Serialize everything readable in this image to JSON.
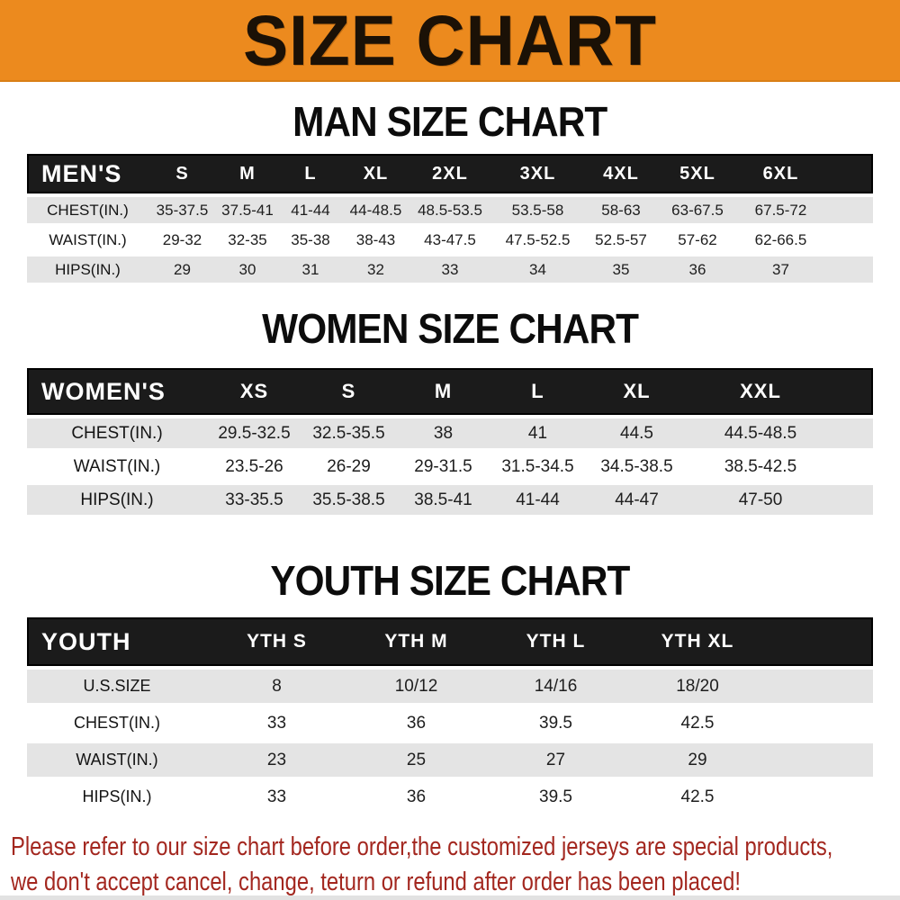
{
  "banner": {
    "title": "SIZE CHART",
    "bg_color": "#ec8a1e",
    "text_color": "#1b1106"
  },
  "colors": {
    "header_bar": "#1b1b1b",
    "row_stripe": "#e4e4e4",
    "footer_text": "#a3271f"
  },
  "sections": [
    {
      "heading": "MAN SIZE CHART",
      "table": {
        "corner_label": "MEN'S",
        "columns": [
          "S",
          "M",
          "L",
          "XL",
          "2XL",
          "3XL",
          "4XL",
          "5XL",
          "6XL"
        ],
        "rows": [
          {
            "label": "CHEST(IN.)",
            "values": [
              "35-37.5",
              "37.5-41",
              "41-44",
              "44-48.5",
              "48.5-53.5",
              "53.5-58",
              "58-63",
              "63-67.5",
              "67.5-72"
            ]
          },
          {
            "label": "WAIST(IN.)",
            "values": [
              "29-32",
              "32-35",
              "35-38",
              "38-43",
              "43-47.5",
              "47.5-52.5",
              "52.5-57",
              "57-62",
              "62-66.5"
            ]
          },
          {
            "label": "HIPS(IN.)",
            "values": [
              "29",
              "30",
              "31",
              "32",
              "33",
              "34",
              "35",
              "36",
              "37"
            ]
          }
        ]
      }
    },
    {
      "heading": "WOMEN SIZE CHART",
      "table": {
        "corner_label": "WOMEN'S",
        "columns": [
          "XS",
          "S",
          "M",
          "L",
          "XL",
          "XXL"
        ],
        "rows": [
          {
            "label": "CHEST(IN.)",
            "values": [
              "29.5-32.5",
              "32.5-35.5",
              "38",
              "41",
              "44.5",
              "44.5-48.5"
            ]
          },
          {
            "label": "WAIST(IN.)",
            "values": [
              "23.5-26",
              "26-29",
              "29-31.5",
              "31.5-34.5",
              "34.5-38.5",
              "38.5-42.5"
            ]
          },
          {
            "label": "HIPS(IN.)",
            "values": [
              "33-35.5",
              "35.5-38.5",
              "38.5-41",
              "41-44",
              "44-47",
              "47-50"
            ]
          }
        ]
      }
    },
    {
      "heading": "YOUTH SIZE CHART",
      "table": {
        "corner_label": "YOUTH",
        "columns": [
          "YTH S",
          "YTH M",
          "YTH L",
          "YTH XL"
        ],
        "rows": [
          {
            "label": "U.S.SIZE",
            "values": [
              "8",
              "10/12",
              "14/16",
              "18/20"
            ]
          },
          {
            "label": "CHEST(IN.)",
            "values": [
              "33",
              "36",
              "39.5",
              "42.5"
            ]
          },
          {
            "label": "WAIST(IN.)",
            "values": [
              "23",
              "25",
              "27",
              "29"
            ]
          },
          {
            "label": "HIPS(IN.)",
            "values": [
              "33",
              "36",
              "39.5",
              "42.5"
            ]
          }
        ]
      }
    }
  ],
  "footer": {
    "lines": [
      "Please refer to our size chart before order,the customized jerseys are special products,",
      "we don't accept cancel, change, teturn or refund after order has been placed!"
    ]
  }
}
